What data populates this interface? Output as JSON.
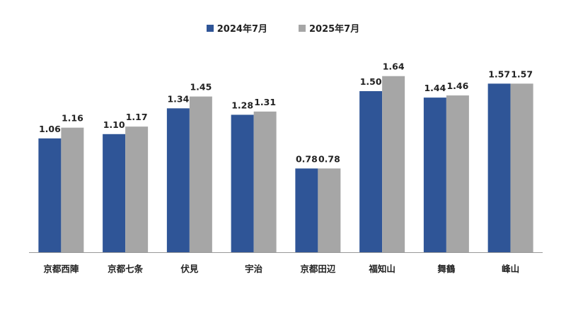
{
  "chart_data": {
    "type": "bar",
    "title": "",
    "xlabel": "",
    "ylabel": "",
    "ylim": [
      0,
      2.0
    ],
    "grid": false,
    "legend_position": "top-center",
    "categories": [
      "京都西陣",
      "京都七条",
      "伏見",
      "宇治",
      "京都田辺",
      "福知山",
      "舞鶴",
      "峰山"
    ],
    "series": [
      {
        "name": "2024年7月",
        "color": "#2F5597",
        "values": [
          1.06,
          1.1,
          1.34,
          1.28,
          0.78,
          1.5,
          1.44,
          1.57
        ]
      },
      {
        "name": "2025年7月",
        "color": "#A6A6A6",
        "values": [
          1.16,
          1.17,
          1.45,
          1.31,
          0.78,
          1.64,
          1.46,
          1.57
        ]
      }
    ]
  }
}
